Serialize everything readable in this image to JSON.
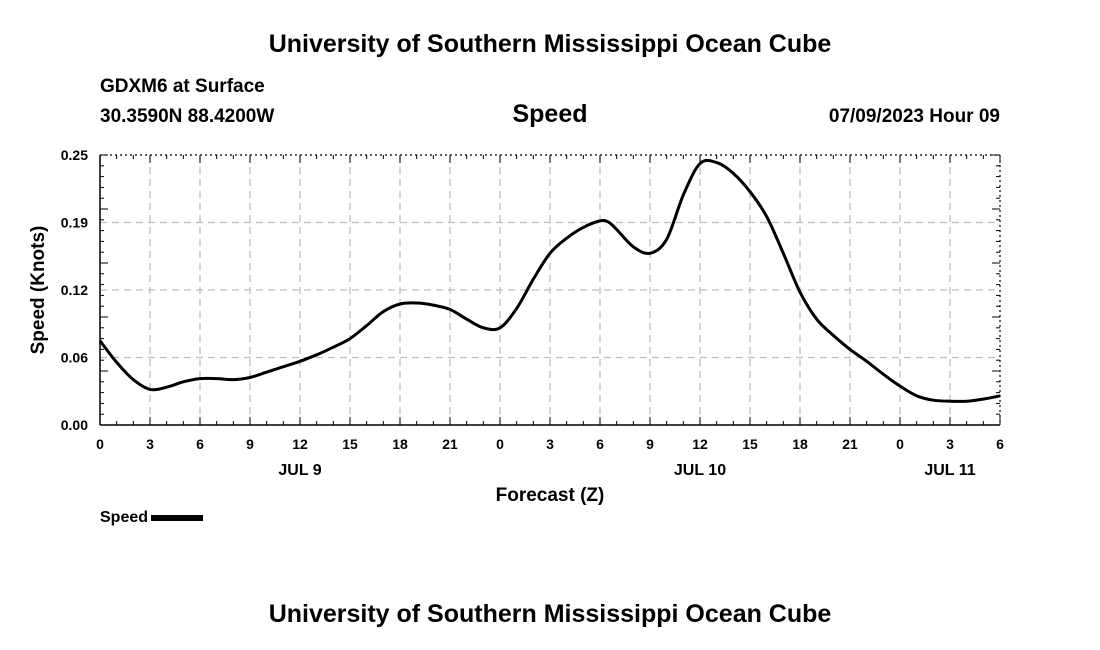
{
  "header": {
    "main_title": "University of Southern Mississippi Ocean Cube",
    "station": "GDXM6 at Surface",
    "coords": "30.3590N  88.4200W",
    "timestamp": "07/09/2023 Hour 09",
    "footer_title": "University of Southern Mississippi Ocean Cube"
  },
  "legend": {
    "label": "Speed",
    "color": "#000000"
  },
  "chart_data": {
    "type": "line",
    "title": "Speed",
    "xlabel": "Forecast (Z)",
    "ylabel": "Speed (Knots)",
    "x_unit": "forecast hour (Z)",
    "xlim": [
      0,
      54
    ],
    "ylim": [
      0,
      0.25
    ],
    "x_ticks": [
      0,
      3,
      6,
      9,
      12,
      15,
      18,
      21,
      24,
      27,
      30,
      33,
      36,
      39,
      42,
      45,
      48,
      51,
      54
    ],
    "x_tick_labels": [
      "0",
      "3",
      "6",
      "9",
      "12",
      "15",
      "18",
      "21",
      "0",
      "3",
      "6",
      "9",
      "12",
      "15",
      "18",
      "21",
      "0",
      "3",
      "6"
    ],
    "date_labels": [
      {
        "x": 12,
        "label": "JUL 9"
      },
      {
        "x": 36,
        "label": "JUL 10"
      },
      {
        "x": 51,
        "label": "JUL 11"
      }
    ],
    "y_ticks": [
      0,
      0.0625,
      0.125,
      0.1875,
      0.25
    ],
    "y_tick_labels": [
      "0.00",
      "0.06",
      "0.12",
      "0.19",
      "0.25"
    ],
    "grid": true,
    "series": [
      {
        "name": "Speed",
        "color": "#000000",
        "x": [
          0,
          1,
          2,
          3,
          4,
          5,
          6,
          7,
          8,
          9,
          10,
          11,
          12,
          13,
          14,
          15,
          16,
          17,
          18,
          19,
          20,
          21,
          22,
          23,
          24,
          25,
          26,
          27,
          28,
          29,
          30,
          30.5,
          31,
          32,
          33,
          34,
          35,
          36,
          37,
          38,
          39,
          40,
          41,
          42,
          43,
          44,
          45,
          46,
          47,
          48,
          49,
          50,
          51,
          52,
          53,
          54
        ],
        "values": [
          0.078,
          0.058,
          0.042,
          0.033,
          0.035,
          0.04,
          0.043,
          0.043,
          0.042,
          0.044,
          0.049,
          0.054,
          0.059,
          0.065,
          0.072,
          0.08,
          0.092,
          0.105,
          0.112,
          0.113,
          0.111,
          0.107,
          0.098,
          0.09,
          0.09,
          0.108,
          0.135,
          0.159,
          0.173,
          0.183,
          0.189,
          0.188,
          0.181,
          0.165,
          0.159,
          0.172,
          0.213,
          0.242,
          0.243,
          0.233,
          0.216,
          0.193,
          0.159,
          0.123,
          0.098,
          0.083,
          0.07,
          0.059,
          0.047,
          0.036,
          0.027,
          0.023,
          0.022,
          0.022,
          0.024,
          0.027
        ]
      }
    ]
  }
}
